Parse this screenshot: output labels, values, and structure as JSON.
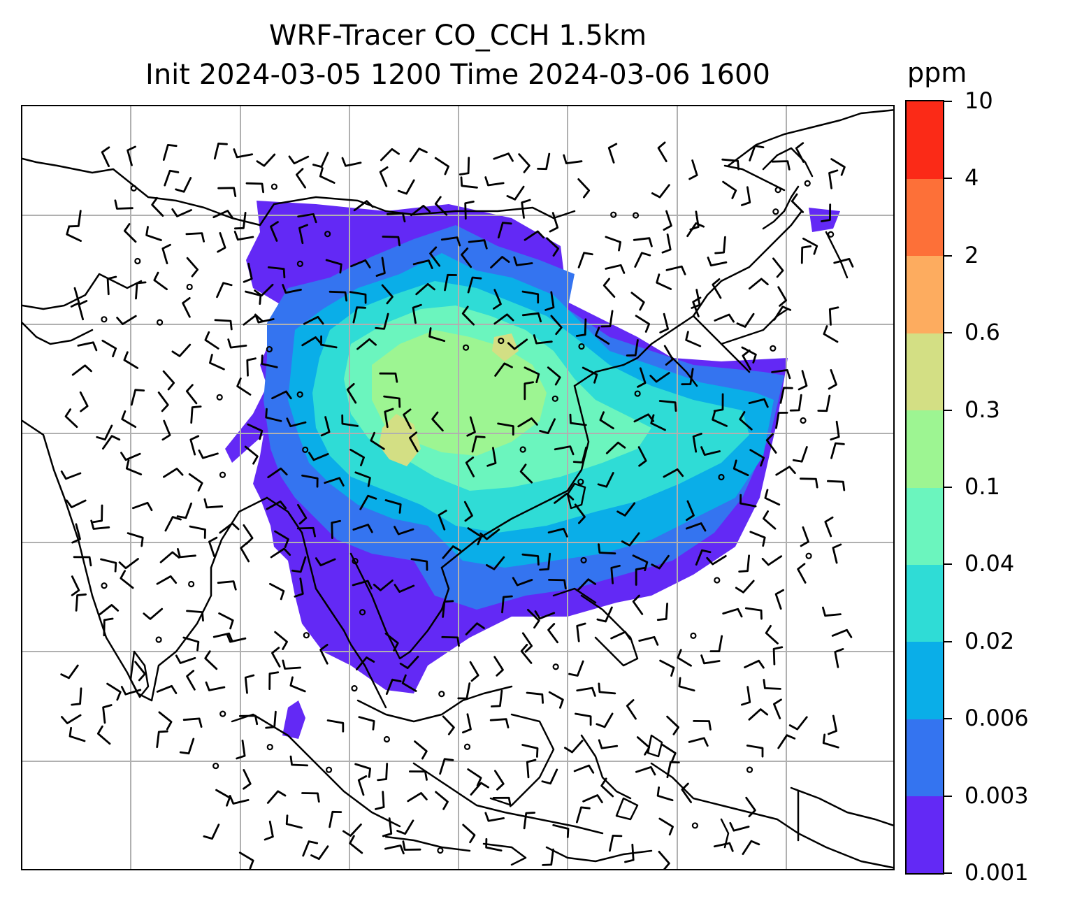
{
  "header": {
    "title_line1": "WRF-Tracer CO_CCH 1.5km",
    "title_line2": "Init 2024-03-05 1200 Time 2024-03-06 1600"
  },
  "colorbar": {
    "unit": "ppm",
    "levels": [
      "0.001",
      "0.003",
      "0.006",
      "0.02",
      "0.04",
      "0.1",
      "0.3",
      "0.6",
      "2",
      "4",
      "10"
    ],
    "colors": [
      "#6329f5",
      "#3474f0",
      "#0aaee8",
      "#2fdcd6",
      "#6bf5be",
      "#9df592",
      "#d3df84",
      "#fdac5f",
      "#fd7038",
      "#fb2a17"
    ]
  },
  "map": {
    "gridline_color": "#b0b0b0",
    "coastline_color": "#000000",
    "wind_barb_color": "#000000",
    "calm_marker": "circle",
    "wind_barbs": "black"
  }
}
